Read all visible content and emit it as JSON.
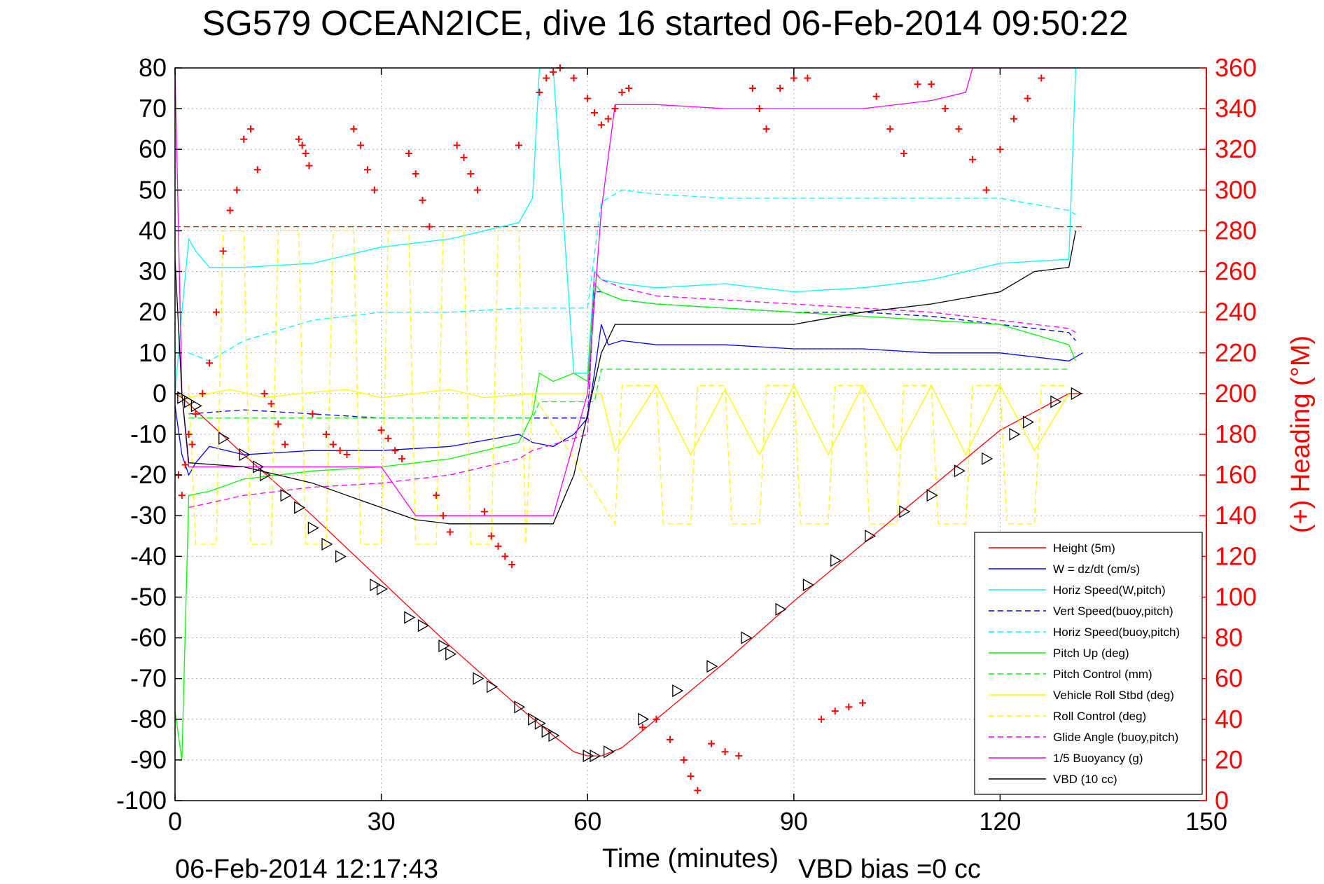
{
  "chart_data": {
    "type": "line",
    "title": "SG579 OCEAN2ICE, dive 16 started 06-Feb-2014 09:50:22",
    "xlabel": "Time (minutes)",
    "ylabel_right": "(+) Heading (°M)",
    "footer_left": "06-Feb-2014 12:17:43",
    "footer_right": "VBD bias =0 cc",
    "xlim": [
      0,
      150
    ],
    "ylim": [
      -100,
      80
    ],
    "ylim_right": [
      0,
      360
    ],
    "x_ticks": [
      0,
      30,
      60,
      90,
      120,
      150
    ],
    "y_ticks": [
      80,
      70,
      60,
      50,
      40,
      30,
      20,
      10,
      0,
      -10,
      -20,
      -30,
      -40,
      -50,
      -60,
      -70,
      -80,
      -90,
      -100
    ],
    "y_ticks_right": [
      360,
      340,
      320,
      300,
      280,
      260,
      240,
      220,
      200,
      180,
      160,
      140,
      120,
      100,
      80,
      60,
      40,
      20,
      0
    ],
    "grid": true,
    "legend_position": "bottom-right",
    "colors": {
      "red": "#ff0000",
      "blue": "#0000ff",
      "cyan": "#00ffff",
      "green": "#00ff00",
      "yellow": "#ffff00",
      "magenta": "#ff00ff",
      "black": "#000000"
    },
    "series": [
      {
        "name": "Height (5m)",
        "color": "#ff0000",
        "style": "solid",
        "x": [
          0,
          1,
          10,
          20,
          30,
          40,
          50,
          55,
          58,
          60,
          62,
          65,
          70,
          80,
          90,
          100,
          110,
          120,
          130,
          132
        ],
        "y": [
          0,
          -1,
          -15,
          -30,
          -46,
          -62,
          -77,
          -84,
          -88,
          -89,
          -89,
          -87,
          -80,
          -66,
          -51,
          -37,
          -23,
          -9,
          0,
          0
        ]
      },
      {
        "name": "W = dz/dt (cm/s)",
        "color": "#0000ff",
        "style": "solid",
        "x": [
          0,
          1,
          2,
          3,
          5,
          10,
          20,
          30,
          40,
          50,
          52,
          55,
          58,
          60,
          61,
          62,
          63,
          65,
          70,
          80,
          90,
          100,
          110,
          120,
          130,
          132
        ],
        "y": [
          -3,
          -15,
          -20,
          -17,
          -13,
          -15,
          -14,
          -14,
          -13,
          -10,
          -12,
          -13,
          -10,
          -6,
          5,
          17,
          12,
          13,
          12,
          12,
          11,
          11,
          10,
          10,
          8,
          10
        ]
      },
      {
        "name": "Horiz Speed(W,pitch)",
        "color": "#00ffff",
        "style": "solid",
        "x": [
          0,
          1,
          2,
          3,
          5,
          10,
          20,
          30,
          40,
          50,
          52,
          53,
          55,
          58,
          60,
          61,
          62,
          65,
          70,
          80,
          90,
          100,
          110,
          120,
          130,
          131,
          132
        ],
        "y": [
          0,
          20,
          38,
          35,
          31,
          31,
          32,
          36,
          38,
          42,
          48,
          80,
          80,
          5,
          5,
          30,
          28,
          27,
          26,
          27,
          25,
          26,
          28,
          32,
          33,
          80,
          80
        ]
      },
      {
        "name": "Vert Speed(buoy,pitch)",
        "color": "#0000ff",
        "style": "dashed",
        "x": [
          2,
          10,
          20,
          30,
          40,
          50,
          52,
          60,
          61,
          62,
          65,
          70,
          80,
          90,
          100,
          110,
          120,
          130,
          131
        ],
        "y": [
          -5,
          -4,
          -5,
          -6,
          -6,
          -6,
          -6,
          -6,
          25,
          25,
          23,
          22,
          21,
          20,
          20,
          19,
          17,
          15,
          13
        ]
      },
      {
        "name": "Horiz Speed(buoy,pitch)",
        "color": "#00ffff",
        "style": "dashed",
        "x": [
          2,
          5,
          10,
          20,
          30,
          40,
          50,
          52,
          60,
          62,
          65,
          70,
          80,
          90,
          100,
          110,
          120,
          130,
          131
        ],
        "y": [
          10,
          8,
          13,
          18,
          20,
          20,
          21,
          21,
          21,
          47,
          50,
          49,
          48,
          48,
          48,
          48,
          48,
          45,
          44
        ]
      },
      {
        "name": "Pitch Up (deg)",
        "color": "#00ff00",
        "style": "solid",
        "x": [
          0,
          1,
          2,
          5,
          10,
          20,
          30,
          40,
          50,
          52,
          53,
          55,
          58,
          60,
          61,
          62,
          65,
          70,
          80,
          90,
          100,
          110,
          120,
          130,
          131
        ],
        "y": [
          -78,
          -90,
          -25,
          -24,
          -21,
          -19,
          -18,
          -16,
          -12,
          -5,
          5,
          3,
          5,
          3,
          27,
          25,
          23,
          22,
          21,
          20,
          19,
          18,
          17,
          12,
          8
        ]
      },
      {
        "name": "Pitch Control (mm)",
        "color": "#00ff00",
        "style": "dashed",
        "x": [
          2,
          10,
          20,
          30,
          40,
          52,
          53,
          60,
          61,
          62,
          130
        ],
        "y": [
          -6,
          -6,
          -6,
          -6,
          -6,
          -6,
          -2,
          -2,
          -2,
          6,
          6
        ]
      },
      {
        "name": "Vehicle Roll Stbd (deg)",
        "color": "#ffff00",
        "style": "solid",
        "x": [
          0,
          2,
          8,
          13,
          18,
          25,
          30,
          35,
          40,
          45,
          52,
          62,
          64,
          70,
          75,
          80,
          85,
          90,
          95,
          100,
          105,
          110,
          115,
          120,
          125,
          130
        ],
        "y": [
          0,
          -1,
          1,
          -1,
          0,
          1,
          -1,
          0,
          1,
          -1,
          0,
          0,
          -14,
          2,
          -15,
          1,
          -15,
          2,
          -15,
          2,
          -14,
          2,
          -15,
          2,
          -14,
          0
        ]
      },
      {
        "name": "Roll Control (deg)",
        "color": "#ffff00",
        "style": "dashed",
        "x": [
          2,
          3,
          6,
          7,
          10,
          11,
          14,
          15,
          18,
          19,
          22,
          23,
          26,
          27,
          30,
          31,
          34,
          35,
          38,
          39,
          42,
          43,
          46,
          47,
          50,
          51,
          52,
          64,
          65,
          70,
          71,
          75,
          76,
          80,
          81,
          85,
          86,
          90,
          91,
          95,
          96,
          100,
          101,
          105,
          106,
          110,
          111,
          115,
          116,
          120,
          121,
          125,
          126,
          130
        ],
        "y": [
          2,
          -37,
          -37,
          40,
          40,
          -37,
          -37,
          40,
          40,
          -37,
          -37,
          40,
          40,
          -37,
          -37,
          40,
          40,
          -37,
          -37,
          40,
          40,
          -37,
          -37,
          40,
          40,
          -37,
          0,
          -32,
          2,
          2,
          -32,
          -32,
          2,
          2,
          -32,
          -32,
          2,
          2,
          -32,
          -32,
          2,
          2,
          -32,
          -32,
          2,
          2,
          -32,
          -32,
          2,
          2,
          -32,
          -32,
          2,
          2
        ]
      },
      {
        "name": "Glide Angle (buoy,pitch)",
        "color": "#ff00ff",
        "style": "dashed",
        "x": [
          2,
          10,
          20,
          30,
          40,
          50,
          52,
          60,
          61,
          62,
          65,
          70,
          80,
          90,
          100,
          110,
          120,
          130,
          131
        ],
        "y": [
          -28,
          -25,
          -23,
          -22,
          -20,
          -16,
          -14,
          -10,
          30,
          28,
          26,
          24,
          23,
          22,
          21,
          20,
          18,
          16,
          15
        ]
      },
      {
        "name": "1/5 Buoyancy (g)",
        "color": "#ff00ff",
        "style": "solid",
        "x": [
          0,
          1,
          2,
          10,
          20,
          30,
          35,
          40,
          50,
          53,
          55,
          60,
          62,
          64,
          70,
          80,
          90,
          100,
          110,
          115,
          116,
          120,
          130,
          131
        ],
        "y": [
          80,
          0,
          -18,
          -18,
          -18,
          -18,
          -30,
          -30,
          -30,
          -30,
          -30,
          0,
          45,
          71,
          71,
          70,
          70,
          70,
          72,
          74,
          80,
          80,
          80,
          80
        ]
      },
      {
        "name": "VBD (10 cc)",
        "color": "#000000",
        "style": "solid",
        "x": [
          0,
          1,
          2,
          10,
          15,
          20,
          25,
          30,
          35,
          40,
          50,
          55,
          58,
          60,
          62,
          64,
          70,
          80,
          90,
          100,
          110,
          120,
          125,
          130,
          131
        ],
        "y": [
          33,
          0,
          -17,
          -18,
          -20,
          -22,
          -25,
          -28,
          -31,
          -32,
          -32,
          -32,
          -20,
          -5,
          10,
          17,
          17,
          17,
          17,
          20,
          22,
          25,
          30,
          31,
          40
        ]
      }
    ],
    "markers": {
      "name": "(+) Heading",
      "symbol": "+",
      "axis": "right",
      "color": "#ff0000",
      "x": [
        0.5,
        1,
        1.5,
        2,
        2.5,
        3,
        4,
        5,
        6,
        7,
        8,
        9,
        10,
        11,
        12,
        13,
        14,
        15,
        16,
        18,
        18.5,
        19,
        19.5,
        20,
        22,
        23,
        24,
        25,
        26,
        27,
        28,
        29,
        30,
        31,
        32,
        33,
        34,
        35,
        36,
        37,
        38,
        39,
        40,
        41,
        42,
        43,
        44,
        45,
        46,
        47,
        48,
        49,
        50,
        53,
        54,
        55,
        56,
        58,
        60,
        61,
        62,
        63,
        64,
        65,
        66,
        68,
        70,
        72,
        74,
        75,
        76,
        78,
        80,
        82,
        84,
        85,
        86,
        88,
        90,
        92,
        94,
        96,
        98,
        100,
        102,
        104,
        106,
        108,
        110,
        112,
        114,
        116,
        118,
        120,
        122,
        124,
        126
      ],
      "y": [
        160,
        150,
        165,
        180,
        175,
        190,
        200,
        215,
        240,
        270,
        290,
        300,
        325,
        330,
        310,
        200,
        195,
        185,
        175,
        325,
        322,
        318,
        312,
        190,
        180,
        175,
        172,
        170,
        330,
        322,
        310,
        300,
        182,
        178,
        172,
        168,
        318,
        308,
        295,
        282,
        150,
        140,
        132,
        322,
        316,
        308,
        300,
        142,
        130,
        125,
        120,
        116,
        322,
        348,
        355,
        358,
        360,
        355,
        345,
        338,
        332,
        335,
        340,
        348,
        350,
        36,
        40,
        30,
        20,
        12,
        5,
        28,
        24,
        22,
        350,
        340,
        330,
        350,
        355,
        355,
        40,
        44,
        46,
        48,
        346,
        330,
        318,
        352,
        352,
        340,
        330,
        315,
        300,
        320,
        335,
        345,
        355
      ]
    },
    "dive_triangles": {
      "x": [
        1,
        2,
        3,
        7,
        10,
        12,
        13,
        16,
        18,
        20,
        22,
        24,
        29,
        30,
        34,
        36,
        39,
        40,
        44,
        46,
        50,
        52,
        53,
        54,
        55,
        60,
        61,
        63,
        68,
        73,
        78,
        83,
        88,
        92,
        96,
        101,
        106,
        110,
        114,
        118,
        122,
        124,
        128,
        131
      ],
      "y": [
        -1,
        -2,
        -3,
        -11,
        -15,
        -18,
        -20,
        -25,
        -28,
        -33,
        -37,
        -40,
        -47,
        -48,
        -55,
        -57,
        -62,
        -64,
        -70,
        -72,
        -77,
        -80,
        -81,
        -83,
        -84,
        -89,
        -89,
        -88,
        -80,
        -73,
        -67,
        -60,
        -53,
        -47,
        -41,
        -35,
        -29,
        -25,
        -19,
        -16,
        -10,
        -7,
        -2,
        0
      ]
    },
    "reference_lines": [
      {
        "color": "#ff0000",
        "style": "dashed",
        "y": 41,
        "x": [
          0,
          132
        ]
      }
    ]
  }
}
